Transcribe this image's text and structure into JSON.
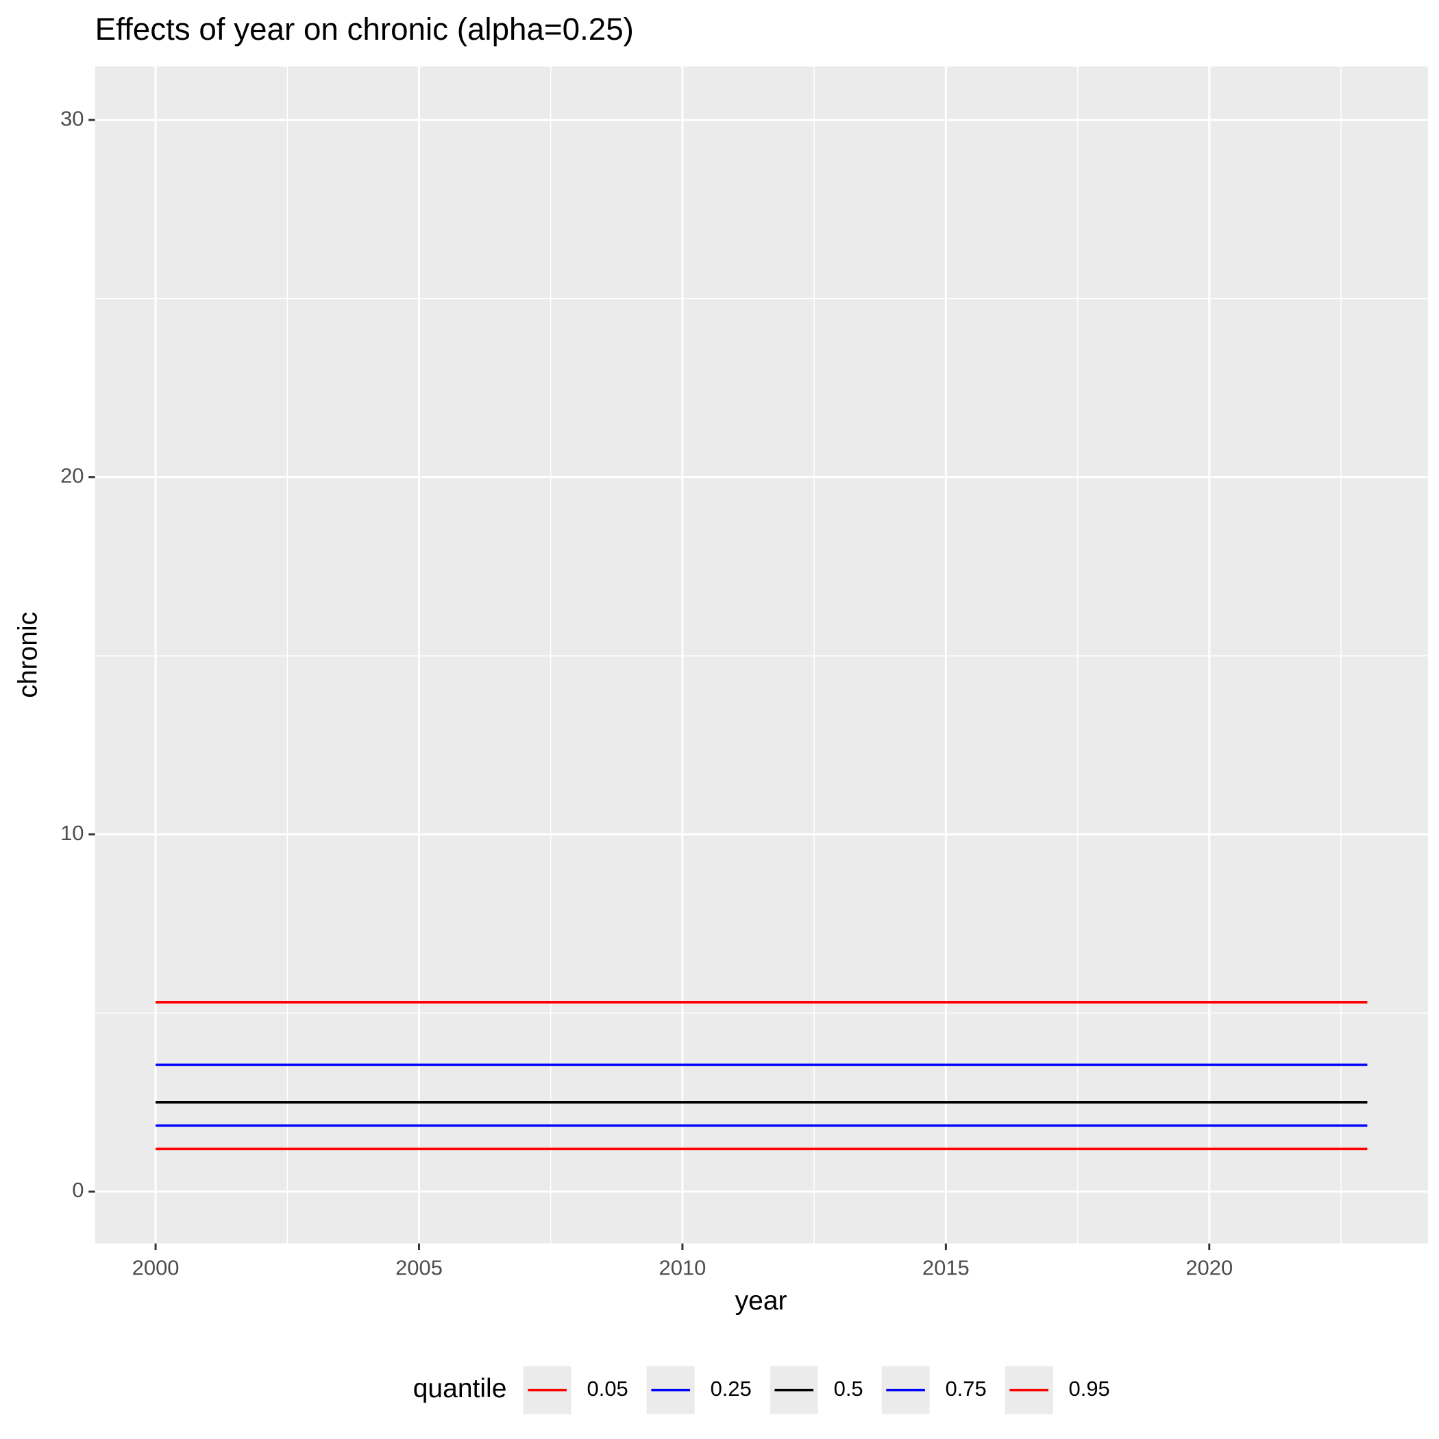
{
  "chart_data": {
    "type": "line",
    "title": "Effects of year on chronic (alpha=0.25)",
    "x_label": "year",
    "y_label": "chronic",
    "legend_title": "quantile",
    "legend_position": "bottom",
    "x": [
      2000,
      2023
    ],
    "series": [
      {
        "name": "0.05",
        "color": "#ff0000",
        "values": [
          1.2,
          1.2
        ]
      },
      {
        "name": "0.25",
        "color": "#0000ff",
        "values": [
          1.85,
          1.85
        ]
      },
      {
        "name": "0.5",
        "color": "#000000",
        "values": [
          2.5,
          2.5
        ]
      },
      {
        "name": "0.75",
        "color": "#0000ff",
        "values": [
          3.55,
          3.55
        ]
      },
      {
        "name": "0.95",
        "color": "#ff0000",
        "values": [
          5.3,
          5.3
        ]
      }
    ],
    "xlim": [
      1998.85,
      2024.15
    ],
    "xticks": [
      2000,
      2005,
      2010,
      2015,
      2020
    ],
    "ylim": [
      -1.45,
      31.5
    ],
    "yticks": [
      0,
      10,
      20,
      30
    ],
    "grid": true
  }
}
